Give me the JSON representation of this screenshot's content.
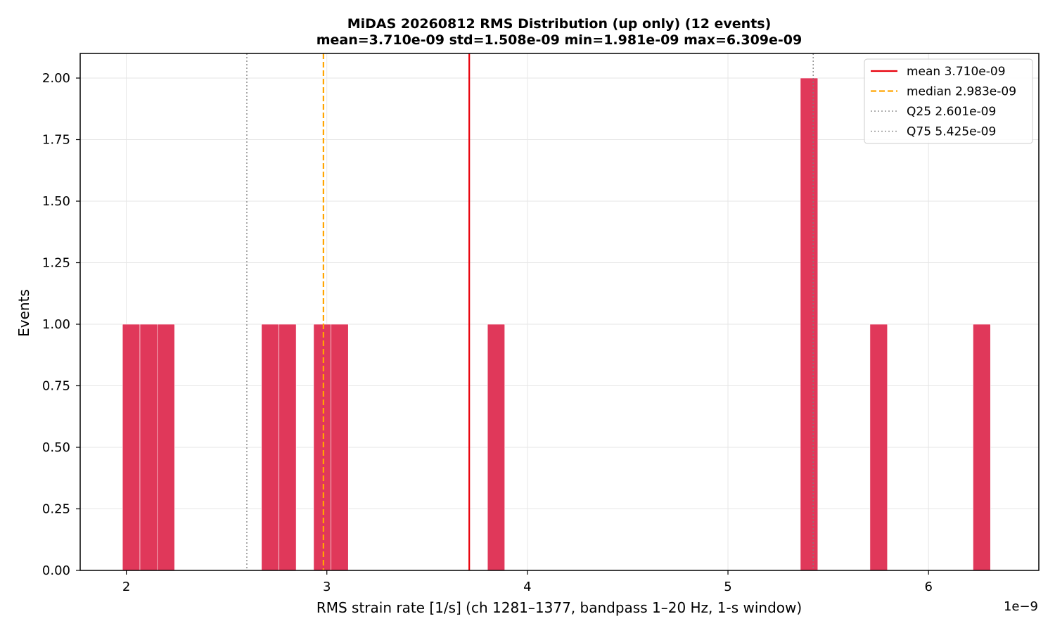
{
  "chart_data": {
    "type": "bar",
    "title": "MiDAS 20260812  RMS Distribution  (up only)  (12 events)",
    "subtitle": "mean=3.710e-09  std=1.508e-09  min=1.981e-09  max=6.309e-09",
    "xlabel": "RMS strain rate [1/s]  (ch 1281–1377, bandpass 1–20 Hz, 1-s window)",
    "ylabel": "Events",
    "x_offset_label": "1e−9",
    "xlim": [
      1.77,
      6.55
    ],
    "ylim": [
      0,
      2.1
    ],
    "x_ticks": [
      2,
      3,
      4,
      5,
      6
    ],
    "x_tick_labels": [
      "2",
      "3",
      "4",
      "5",
      "6"
    ],
    "y_ticks": [
      0,
      0.25,
      0.5,
      0.75,
      1.0,
      1.25,
      1.5,
      1.75,
      2.0
    ],
    "y_tick_labels": [
      "0.00",
      "0.25",
      "0.50",
      "0.75",
      "1.00",
      "1.25",
      "1.50",
      "1.75",
      "2.00"
    ],
    "grid": true,
    "legend_position": "top-right",
    "bar_color": "#e0385a",
    "bins": [
      {
        "x0": 1.981,
        "x1": 2.068,
        "count": 1
      },
      {
        "x0": 2.068,
        "x1": 2.155,
        "count": 1
      },
      {
        "x0": 2.155,
        "x1": 2.241,
        "count": 1
      },
      {
        "x0": 2.674,
        "x1": 2.761,
        "count": 1
      },
      {
        "x0": 2.761,
        "x1": 2.847,
        "count": 1
      },
      {
        "x0": 2.934,
        "x1": 3.021,
        "count": 1
      },
      {
        "x0": 3.021,
        "x1": 3.107,
        "count": 1
      },
      {
        "x0": 3.801,
        "x1": 3.887,
        "count": 1
      },
      {
        "x0": 5.361,
        "x1": 5.448,
        "count": 2
      },
      {
        "x0": 5.708,
        "x1": 5.795,
        "count": 1
      },
      {
        "x0": 6.222,
        "x1": 6.309,
        "count": 1
      }
    ],
    "reference_lines": [
      {
        "name": "mean",
        "label": "mean   3.710e-09",
        "value": 3.71,
        "color": "#e8000b",
        "style": "solid"
      },
      {
        "name": "median",
        "label": "median 2.983e-09",
        "value": 2.983,
        "color": "#ffa500",
        "style": "dashed"
      },
      {
        "name": "Q25",
        "label": "Q25    2.601e-09",
        "value": 2.601,
        "color": "#808080",
        "style": "dotted"
      },
      {
        "name": "Q75",
        "label": "Q75    5.425e-09",
        "value": 5.425,
        "color": "#808080",
        "style": "dotted"
      }
    ]
  }
}
